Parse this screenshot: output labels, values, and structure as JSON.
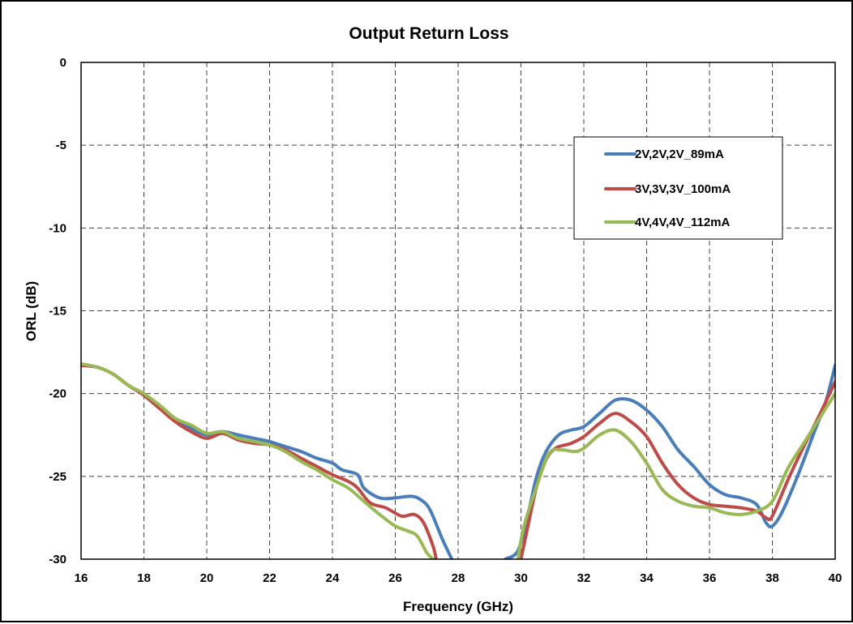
{
  "chart_data": {
    "type": "line",
    "title": "Output Return Loss",
    "xlabel": "Frequency (GHz)",
    "ylabel": "ORL (dB)",
    "xlim": [
      16,
      40
    ],
    "ylim": [
      -30,
      0
    ],
    "xticks": [
      "16",
      "18",
      "20",
      "22",
      "24",
      "26",
      "28",
      "30",
      "32",
      "34",
      "36",
      "38",
      "40"
    ],
    "yticks": [
      "0",
      "-5",
      "-10",
      "-15",
      "-20",
      "-25",
      "-30"
    ],
    "grid": true,
    "legend_position": "top-right",
    "series": [
      {
        "name": "2V,2V,2V_89mA",
        "color": "#4a7ebb",
        "segments": [
          [
            [
              16,
              -18.3
            ],
            [
              16.5,
              -18.4
            ],
            [
              17,
              -18.8
            ],
            [
              17.5,
              -19.5
            ],
            [
              18,
              -20.1
            ],
            [
              18.5,
              -20.9
            ],
            [
              19,
              -21.6
            ],
            [
              19.5,
              -22.1
            ],
            [
              20,
              -22.5
            ],
            [
              20.5,
              -22.3
            ],
            [
              21,
              -22.5
            ],
            [
              21.5,
              -22.7
            ],
            [
              22,
              -22.9
            ],
            [
              22.5,
              -23.2
            ],
            [
              23,
              -23.5
            ],
            [
              23.5,
              -23.9
            ],
            [
              24,
              -24.2
            ],
            [
              24.3,
              -24.6
            ],
            [
              24.8,
              -24.9
            ],
            [
              25,
              -25.7
            ],
            [
              25.5,
              -26.3
            ],
            [
              26,
              -26.3
            ],
            [
              26.5,
              -26.2
            ],
            [
              26.8,
              -26.4
            ],
            [
              27.1,
              -27.0
            ],
            [
              27.5,
              -28.8
            ],
            [
              27.8,
              -30.0
            ]
          ],
          [
            [
              29.5,
              -30.0
            ],
            [
              29.9,
              -29.5
            ],
            [
              30.2,
              -27.5
            ],
            [
              30.5,
              -25.0
            ],
            [
              30.8,
              -23.5
            ],
            [
              31.2,
              -22.5
            ],
            [
              31.6,
              -22.2
            ],
            [
              32,
              -22.0
            ],
            [
              32.5,
              -21.2
            ],
            [
              33,
              -20.4
            ],
            [
              33.5,
              -20.4
            ],
            [
              34,
              -21.0
            ],
            [
              34.5,
              -22.0
            ],
            [
              35,
              -23.4
            ],
            [
              35.5,
              -24.4
            ],
            [
              36,
              -25.5
            ],
            [
              36.5,
              -26.1
            ],
            [
              37,
              -26.3
            ],
            [
              37.5,
              -26.7
            ],
            [
              37.8,
              -27.8
            ],
            [
              38,
              -28.0
            ],
            [
              38.3,
              -27.2
            ],
            [
              38.8,
              -25.0
            ],
            [
              39.3,
              -22.5
            ],
            [
              39.7,
              -20.5
            ],
            [
              40,
              -18.3
            ]
          ]
        ]
      },
      {
        "name": "3V,3V,3V_100mA",
        "color": "#be4b48",
        "segments": [
          [
            [
              16,
              -18.3
            ],
            [
              16.5,
              -18.4
            ],
            [
              17,
              -18.8
            ],
            [
              17.5,
              -19.5
            ],
            [
              18,
              -20.1
            ],
            [
              18.5,
              -20.9
            ],
            [
              19,
              -21.7
            ],
            [
              19.5,
              -22.3
            ],
            [
              20,
              -22.7
            ],
            [
              20.5,
              -22.4
            ],
            [
              21,
              -22.8
            ],
            [
              21.5,
              -23.0
            ],
            [
              22,
              -23.1
            ],
            [
              22.5,
              -23.4
            ],
            [
              23,
              -23.9
            ],
            [
              23.5,
              -24.4
            ],
            [
              24,
              -24.9
            ],
            [
              24.5,
              -25.3
            ],
            [
              24.8,
              -25.7
            ],
            [
              25.2,
              -26.6
            ],
            [
              25.7,
              -26.9
            ],
            [
              26.2,
              -27.4
            ],
            [
              26.6,
              -27.3
            ],
            [
              26.9,
              -27.8
            ],
            [
              27.2,
              -29.2
            ],
            [
              27.3,
              -30.0
            ]
          ],
          [
            [
              30.0,
              -30.0
            ],
            [
              30.2,
              -28.2
            ],
            [
              30.5,
              -25.6
            ],
            [
              30.8,
              -24.0
            ],
            [
              31.1,
              -23.3
            ],
            [
              31.6,
              -23.0
            ],
            [
              32,
              -22.6
            ],
            [
              32.5,
              -21.8
            ],
            [
              33,
              -21.2
            ],
            [
              33.5,
              -21.7
            ],
            [
              34,
              -22.6
            ],
            [
              34.5,
              -24.2
            ],
            [
              35,
              -25.5
            ],
            [
              35.5,
              -26.3
            ],
            [
              36,
              -26.7
            ],
            [
              36.5,
              -26.8
            ],
            [
              37,
              -26.9
            ],
            [
              37.5,
              -27.1
            ],
            [
              37.8,
              -27.5
            ],
            [
              38,
              -27.4
            ],
            [
              38.5,
              -25.2
            ],
            [
              39,
              -23.2
            ],
            [
              39.5,
              -21.3
            ],
            [
              40,
              -19.3
            ]
          ]
        ]
      },
      {
        "name": "4V,4V,4V_112mA",
        "color": "#98b954",
        "segments": [
          [
            [
              16,
              -18.2
            ],
            [
              16.5,
              -18.4
            ],
            [
              17,
              -18.8
            ],
            [
              17.5,
              -19.5
            ],
            [
              18,
              -20.0
            ],
            [
              18.5,
              -20.7
            ],
            [
              19,
              -21.5
            ],
            [
              19.5,
              -21.9
            ],
            [
              20,
              -22.4
            ],
            [
              20.5,
              -22.3
            ],
            [
              21,
              -22.7
            ],
            [
              21.5,
              -22.9
            ],
            [
              22,
              -23.1
            ],
            [
              22.5,
              -23.5
            ],
            [
              23,
              -24.1
            ],
            [
              23.5,
              -24.6
            ],
            [
              24,
              -25.2
            ],
            [
              24.5,
              -25.7
            ],
            [
              25,
              -26.5
            ],
            [
              25.5,
              -27.3
            ],
            [
              26,
              -28.0
            ],
            [
              26.4,
              -28.3
            ],
            [
              26.7,
              -28.6
            ],
            [
              27,
              -29.6
            ],
            [
              27.2,
              -30.0
            ]
          ],
          [
            [
              29.9,
              -30.0
            ],
            [
              30.1,
              -28.0
            ],
            [
              30.5,
              -25.6
            ],
            [
              30.9,
              -23.6
            ],
            [
              31.3,
              -23.4
            ],
            [
              31.7,
              -23.5
            ],
            [
              32,
              -23.3
            ],
            [
              32.5,
              -22.5
            ],
            [
              33,
              -22.2
            ],
            [
              33.5,
              -22.9
            ],
            [
              34,
              -24.2
            ],
            [
              34.5,
              -25.8
            ],
            [
              35,
              -26.5
            ],
            [
              35.5,
              -26.8
            ],
            [
              36,
              -26.9
            ],
            [
              36.5,
              -27.2
            ],
            [
              37,
              -27.3
            ],
            [
              37.5,
              -27.1
            ],
            [
              38,
              -26.5
            ],
            [
              38.5,
              -24.5
            ],
            [
              39,
              -23.0
            ],
            [
              39.5,
              -21.5
            ],
            [
              40,
              -20.0
            ]
          ]
        ]
      }
    ]
  }
}
